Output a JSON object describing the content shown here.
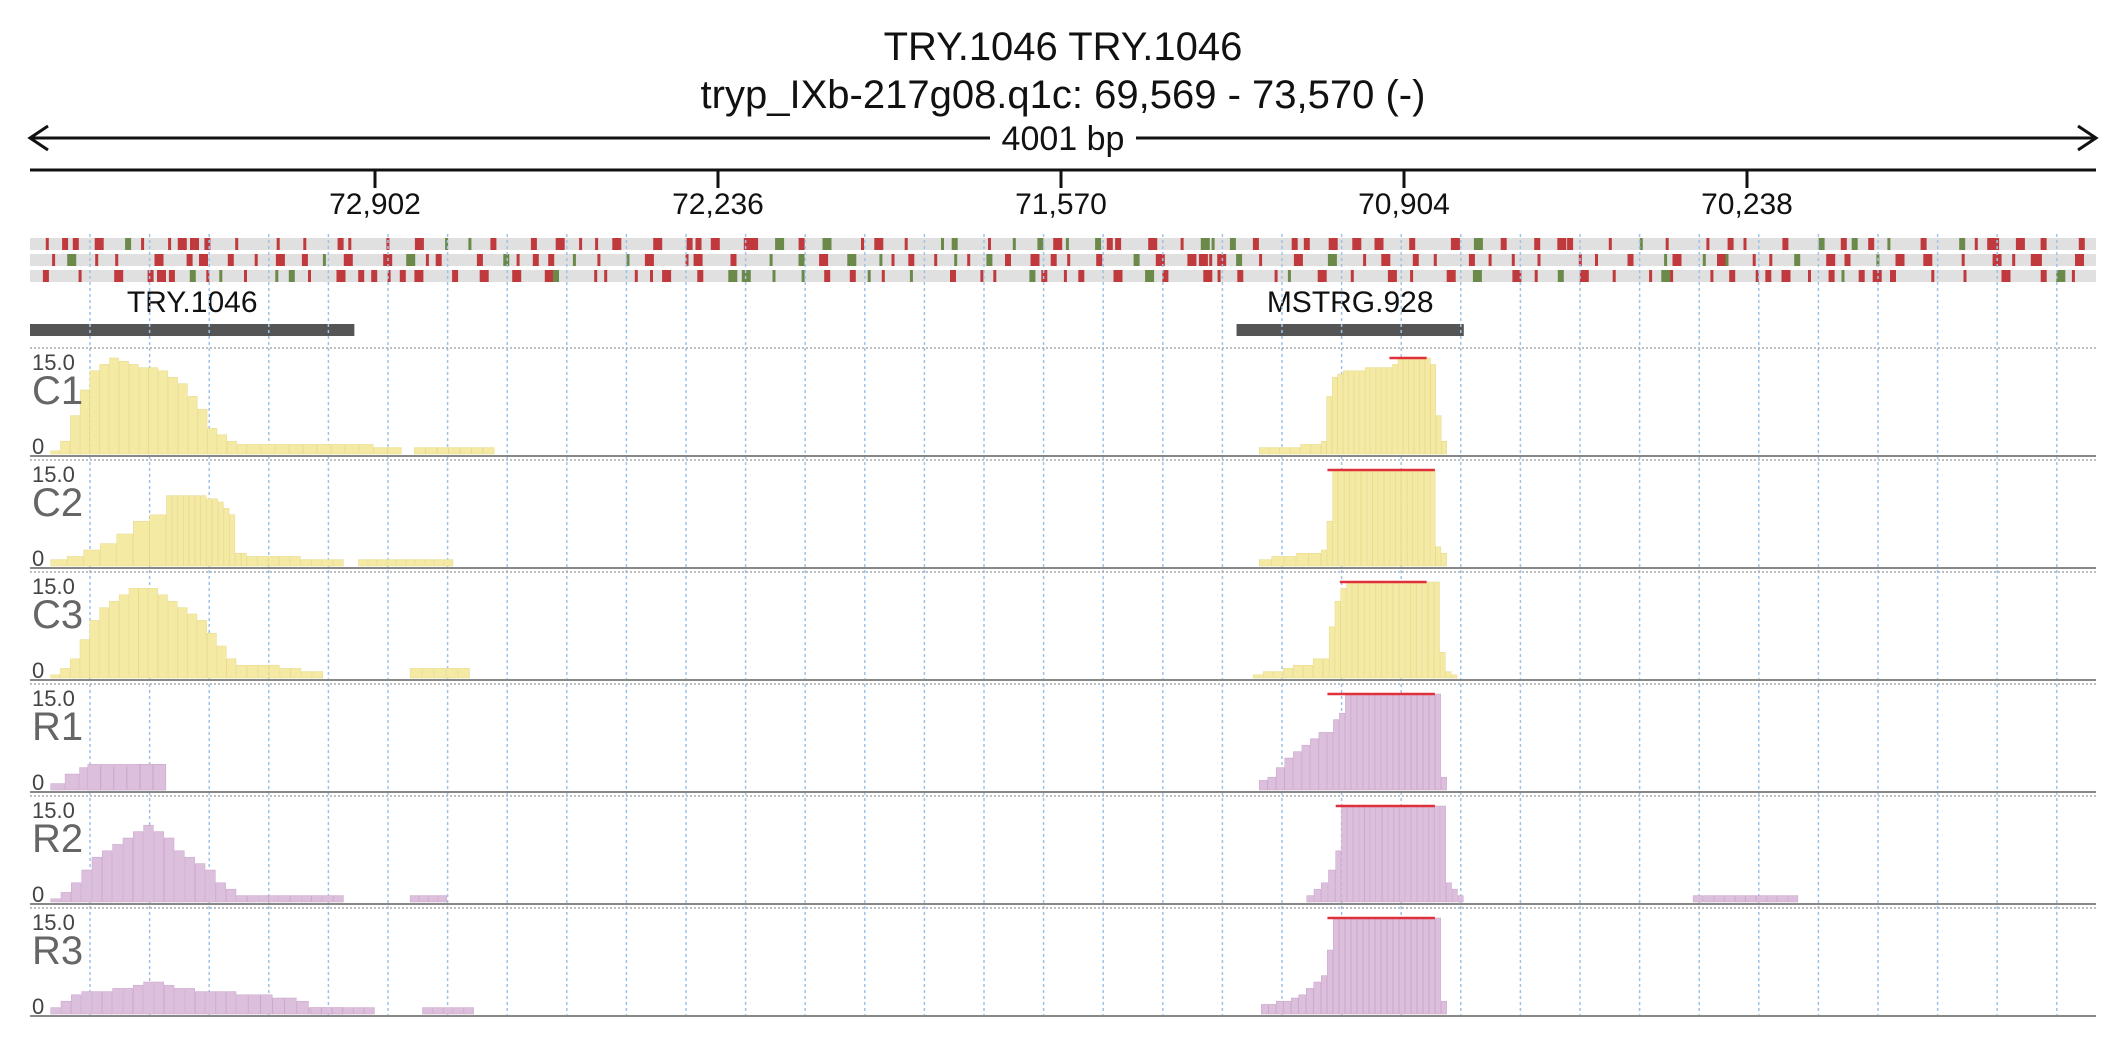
{
  "header": {
    "title": "TRY.1046  TRY.1046",
    "subtitle": "tryp_IXb-217g08.q1c: 69,569 - 73,570 (-)",
    "span": "4001 bp"
  },
  "chart_data": {
    "type": "area",
    "region": {
      "start": 69569,
      "end": 73570,
      "strand": "-"
    },
    "ruler": {
      "ticks": [
        "72,902",
        "72,236",
        "71,570",
        "70,904",
        "70,238"
      ]
    },
    "genes": [
      {
        "name": "TRY.1046",
        "start_frac": 0.0,
        "end_frac": 0.157
      },
      {
        "name": "MSTRG.928",
        "start_frac": 0.584,
        "end_frac": 0.694
      }
    ],
    "tracks": [
      {
        "name": "C1",
        "max": "15.0",
        "min": "0",
        "color": "#f4eaa3",
        "segments": [
          {
            "from": 0.01,
            "to": 0.105,
            "values": [
              0.5,
              2,
              6,
              10,
              13,
              14,
              15,
              14.5,
              14,
              13.5,
              13.5,
              13,
              12,
              11,
              9,
              7,
              4,
              3,
              2,
              1.5
            ]
          },
          {
            "from": 0.105,
            "to": 0.18,
            "values": [
              1.5,
              1.5,
              1.5,
              1.5,
              1.5,
              1.5,
              1.5,
              1.5,
              1.5,
              1,
              1
            ]
          },
          {
            "from": 0.186,
            "to": 0.225,
            "values": [
              1,
              1,
              1,
              1,
              1,
              1,
              1
            ]
          },
          {
            "from": 0.595,
            "to": 0.625,
            "values": [
              1,
              1,
              1,
              1,
              1.5,
              1.5
            ]
          },
          {
            "from": 0.625,
            "to": 0.686,
            "values": [
              2,
              9,
              12,
              12.5,
              13,
              13,
              13,
              13,
              13.5,
              13.5,
              13.5,
              13.5,
              13.5,
              14,
              15,
              15,
              15,
              15,
              15,
              15,
              14,
              6,
              2
            ]
          }
        ],
        "clip": {
          "from": 0.658,
          "to": 0.676
        }
      },
      {
        "name": "C2",
        "max": "15.0",
        "min": "0",
        "color": "#f4eaa3",
        "segments": [
          {
            "from": 0.01,
            "to": 0.066,
            "values": [
              1,
              1.5,
              2.5,
              3.5,
              5,
              7,
              8
            ]
          },
          {
            "from": 0.066,
            "to": 0.105,
            "values": [
              11,
              11,
              11,
              11,
              11,
              11,
              11,
              10.5,
              10.5,
              10,
              9,
              8,
              2,
              2
            ]
          },
          {
            "from": 0.105,
            "to": 0.152,
            "values": [
              1.5,
              1.5,
              1.5,
              1.5,
              1.5,
              1,
              1,
              1,
              1
            ]
          },
          {
            "from": 0.159,
            "to": 0.205,
            "values": [
              1,
              1,
              1,
              1,
              1,
              1,
              1,
              1,
              1,
              1
            ]
          },
          {
            "from": 0.595,
            "to": 0.625,
            "values": [
              1,
              1.5,
              1.5,
              2,
              2
            ]
          },
          {
            "from": 0.625,
            "to": 0.686,
            "values": [
              2.5,
              7,
              15,
              15,
              15,
              15,
              15,
              15,
              15,
              15,
              15,
              15,
              15,
              15,
              15,
              15,
              15,
              15,
              15,
              15,
              3,
              2
            ]
          }
        ],
        "clip": {
          "from": 0.628,
          "to": 0.68
        }
      },
      {
        "name": "C3",
        "max": "15.0",
        "min": "0",
        "color": "#f4eaa3",
        "segments": [
          {
            "from": 0.01,
            "to": 0.1,
            "values": [
              0.5,
              1.5,
              3,
              6,
              9,
              11,
              12,
              13,
              14,
              14,
              14,
              13,
              12,
              11,
              10,
              9,
              7,
              5,
              3
            ]
          },
          {
            "from": 0.1,
            "to": 0.142,
            "values": [
              2,
              2,
              2,
              2,
              1.5,
              1.5,
              1,
              1
            ]
          },
          {
            "from": 0.184,
            "to": 0.213,
            "values": [
              1.5,
              1.5,
              1.5,
              1.5,
              1.5
            ]
          },
          {
            "from": 0.592,
            "to": 0.626,
            "values": [
              0.5,
              1,
              1,
              1.5,
              2,
              2,
              3
            ]
          },
          {
            "from": 0.626,
            "to": 0.691,
            "values": [
              3,
              8,
              12,
              14,
              15,
              15,
              15,
              15,
              15,
              15,
              15,
              15,
              15,
              15,
              15,
              15,
              15,
              15,
              15,
              15,
              4,
              1,
              0.5
            ]
          }
        ],
        "clip": {
          "from": 0.634,
          "to": 0.676
        }
      },
      {
        "name": "R1",
        "max": "15.0",
        "min": "0",
        "color": "#dcbfdc",
        "segments": [
          {
            "from": 0.01,
            "to": 0.066,
            "values": [
              1,
              2.5,
              3.5,
              3.5,
              3.5,
              3.5,
              4,
              4
            ]
          },
          {
            "from": 0.066,
            "to": 0.066,
            "values": []
          },
          {
            "from": 0.066,
            "to": 0.065,
            "values": []
          },
          {
            "from": 0.066,
            "to": 0.066,
            "values": []
          },
          {
            "from": 0.066,
            "to": 0.066,
            "values": []
          },
          {
            "from": 0.595,
            "to": 0.628,
            "values": [
              1.5,
              2,
              3.5,
              5,
              6,
              7,
              8,
              9
            ]
          },
          {
            "from": 0.628,
            "to": 0.686,
            "values": [
              9,
              11,
              12,
              15,
              15,
              15,
              15,
              15,
              15,
              15,
              15,
              15,
              15,
              15,
              15,
              15,
              15,
              15,
              15,
              2
            ]
          }
        ],
        "extra": [
          {
            "from": 0.028,
            "to": 0.066,
            "values": [
              4,
              4,
              4,
              4,
              4,
              4
            ]
          }
        ],
        "clip": {
          "from": 0.628,
          "to": 0.68
        }
      },
      {
        "name": "R2",
        "max": "15.0",
        "min": "0",
        "color": "#dcbfdc",
        "segments": [
          {
            "from": 0.01,
            "to": 0.1,
            "values": [
              0.5,
              1.5,
              3,
              5,
              7,
              8,
              9,
              10,
              11,
              12,
              11,
              10,
              8,
              7,
              6,
              5,
              3,
              2
            ]
          },
          {
            "from": 0.1,
            "to": 0.152,
            "values": [
              1,
              1,
              1,
              1,
              1,
              1,
              1,
              1,
              1,
              1
            ]
          },
          {
            "from": 0.184,
            "to": 0.202,
            "values": [
              1,
              1,
              1,
              1
            ]
          },
          {
            "from": 0.618,
            "to": 0.632,
            "values": [
              1,
              2,
              3,
              5
            ]
          },
          {
            "from": 0.632,
            "to": 0.694,
            "values": [
              8,
              15,
              15,
              15,
              15,
              15,
              15,
              15,
              15,
              15,
              15,
              15,
              15,
              15,
              15,
              15,
              15,
              15,
              15,
              3,
              2,
              1
            ]
          },
          {
            "from": 0.805,
            "to": 0.856,
            "values": [
              1,
              1,
              1,
              1,
              1,
              1,
              1,
              1,
              1,
              1
            ]
          }
        ],
        "clip": {
          "from": 0.632,
          "to": 0.68
        }
      },
      {
        "name": "R3",
        "max": "15.0",
        "min": "0",
        "color": "#dcbfdc",
        "segments": [
          {
            "from": 0.01,
            "to": 0.1,
            "values": [
              1,
              2,
              3,
              3.5,
              3.5,
              3.5,
              4,
              4,
              4.5,
              5,
              5,
              4.5,
              4,
              4,
              3.5,
              3.5,
              3.5,
              3.5
            ]
          },
          {
            "from": 0.1,
            "to": 0.1,
            "values": []
          },
          {
            "from": 0.1,
            "to": 0.1,
            "values": []
          },
          {
            "from": 0.1,
            "to": 0.1,
            "values": []
          },
          {
            "from": 0.1,
            "to": 0.1,
            "values": []
          },
          {
            "from": 0.1,
            "to": 0.1,
            "values": []
          },
          {
            "from": 0.1,
            "to": 0.1,
            "values": []
          },
          {
            "from": 0.1,
            "to": 0.1,
            "values": []
          },
          {
            "from": 0.1,
            "to": 0.1,
            "values": []
          },
          {
            "from": 0.1,
            "to": 0.1,
            "values": []
          },
          {
            "from": 0.1,
            "to": 0.1,
            "values": []
          },
          {
            "from": 0.1,
            "to": 0.1,
            "values": []
          },
          {
            "from": 0.1,
            "to": 0.1,
            "values": []
          },
          {
            "from": 0.1,
            "to": 0.1,
            "values": []
          },
          {
            "from": 0.1,
            "to": 0.1,
            "values": []
          },
          {
            "from": 0.1,
            "to": 0.1,
            "values": []
          },
          {
            "from": 0.1,
            "to": 0.1,
            "values": []
          },
          {
            "from": 0.1,
            "to": 0.1,
            "values": []
          },
          {
            "from": 0.1,
            "to": 0.1,
            "values": []
          },
          {
            "from": 0.1,
            "to": 0.1,
            "values": []
          },
          {
            "from": 0.1,
            "to": 0.1,
            "values": []
          },
          {
            "from": 0.1,
            "to": 0.1,
            "values": []
          },
          {
            "from": 0.1,
            "to": 0.1,
            "values": []
          },
          {
            "from": 0.1,
            "to": 0.1,
            "values": []
          }
        ],
        "extra": [
          {
            "from": 0.1,
            "to": 0.135,
            "values": [
              3,
              3,
              3,
              2.5,
              2.5,
              2
            ]
          },
          {
            "from": 0.135,
            "to": 0.152,
            "values": [
              1,
              1,
              1
            ]
          },
          {
            "from": 0.136,
            "to": 0.167,
            "values": [
              1,
              1,
              1,
              1,
              1,
              1
            ]
          },
          {
            "from": 0.19,
            "to": 0.215,
            "values": [
              1,
              1,
              1,
              1,
              1
            ]
          },
          {
            "from": 0.596,
            "to": 0.625,
            "values": [
              1.5,
              1.5,
              2,
              2,
              2.5,
              3,
              4,
              5
            ]
          },
          {
            "from": 0.625,
            "to": 0.686,
            "values": [
              6,
              10,
              15,
              15,
              15,
              15,
              15,
              15,
              15,
              15,
              15,
              15,
              15,
              15,
              15,
              15,
              15,
              15,
              15,
              15,
              2
            ]
          }
        ],
        "clip": {
          "from": 0.628,
          "to": 0.68
        }
      }
    ],
    "variant_rows": 3,
    "variant_colors": {
      "red": "#c0393c",
      "green": "#6b8a4a",
      "row_bg": "#e0e0e0"
    }
  }
}
